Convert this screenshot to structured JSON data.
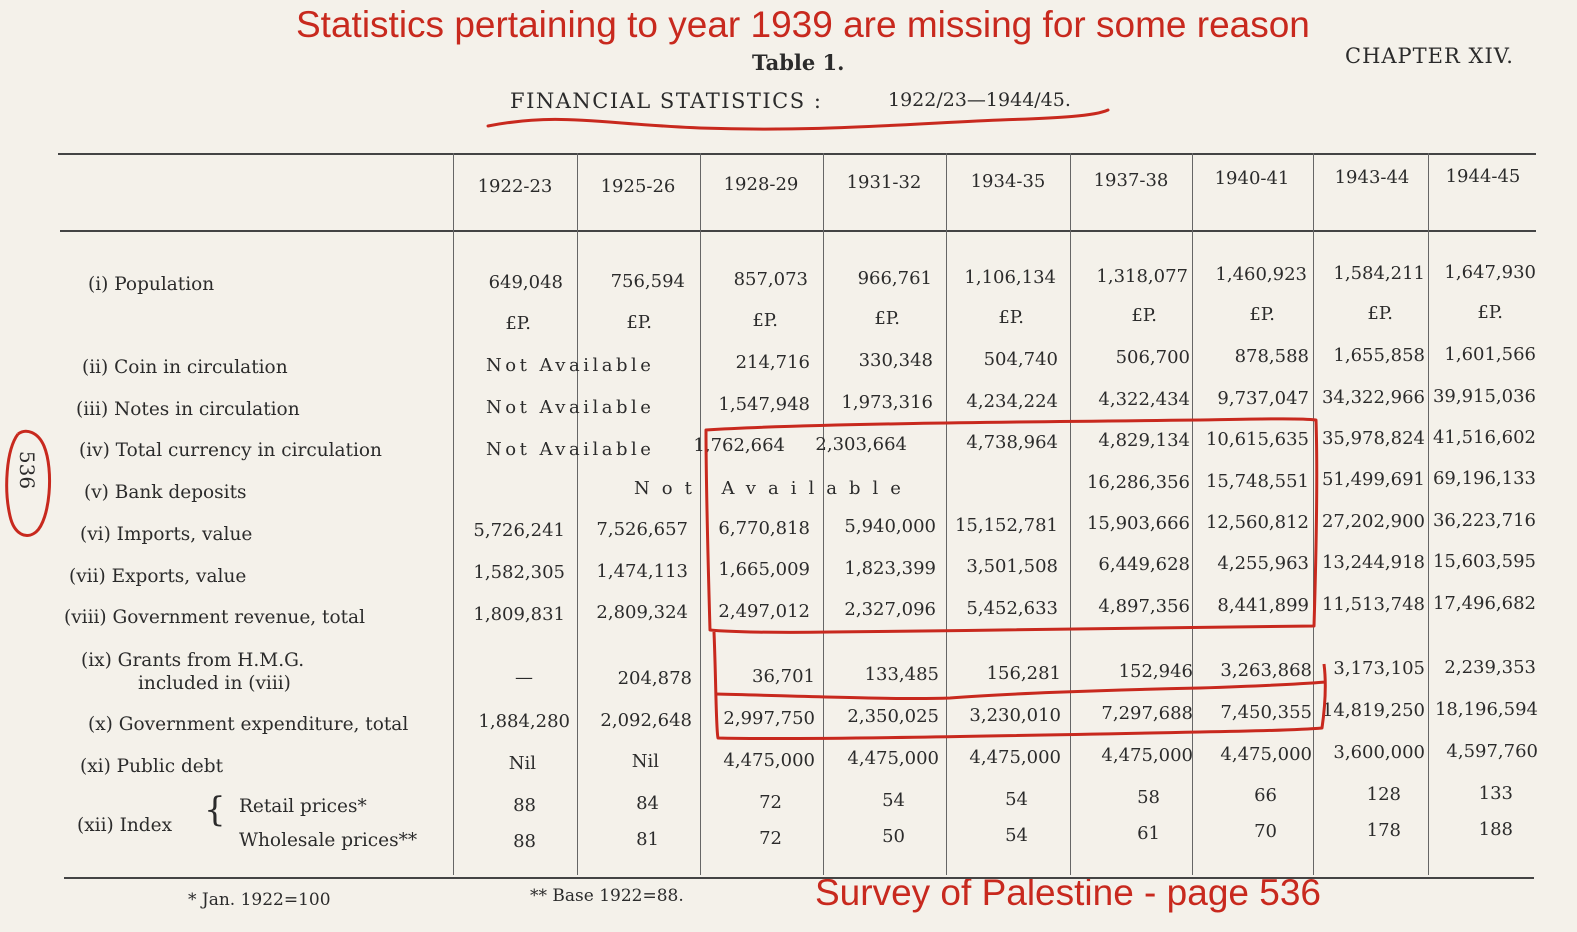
{
  "annotations": {
    "top": "Statistics pertaining to year 1939 are missing for some reason",
    "bottom": "Survey of Palestine - page 536"
  },
  "document": {
    "table_title": "Table 1.",
    "chapter": "CHAPTER XIV.",
    "heading": "FINANCIAL STATISTICS :",
    "heading_years": "1922/23—1944/45.",
    "page_number": "536",
    "years": [
      "1922-23",
      "1925-26",
      "1928-29",
      "1931-32",
      "1934-35",
      "1937-38",
      "1940-41",
      "1943-44",
      "1944-45"
    ],
    "unit": "£P.",
    "not_available": "Not Available",
    "rows": {
      "population": {
        "label": "(i) Population",
        "values": [
          "649,048",
          "756,594",
          "857,073",
          "966,761",
          "1,106,134",
          "1,318,077",
          "1,460,923",
          "1,584,211",
          "1,647,930"
        ]
      },
      "coin": {
        "label": "(ii) Coin in circulation",
        "values": [
          "214,716",
          "330,348",
          "504,740",
          "506,700",
          "878,588",
          "1,655,858",
          "1,601,566"
        ]
      },
      "notes": {
        "label": "(iii) Notes in circulation",
        "values": [
          "1,547,948",
          "1,973,316",
          "4,234,224",
          "4,322,434",
          "9,737,047",
          "34,322,966",
          "39,915,036"
        ]
      },
      "currency": {
        "label": "(iv) Total currency in circulation",
        "values": [
          "1,762,664",
          "2,303,664",
          "4,738,964",
          "4,829,134",
          "10,615,635",
          "35,978,824",
          "41,516,602"
        ]
      },
      "deposits": {
        "label": "(v) Bank deposits",
        "values": [
          "16,286,356",
          "15,748,551",
          "51,499,691",
          "69,196,133"
        ]
      },
      "imports": {
        "label": "(vi) Imports, value",
        "values": [
          "5,726,241",
          "7,526,657",
          "6,770,818",
          "5,940,000",
          "15,152,781",
          "15,903,666",
          "12,560,812",
          "27,202,900",
          "36,223,716"
        ]
      },
      "exports": {
        "label": "(vii) Exports, value",
        "values": [
          "1,582,305",
          "1,474,113",
          "1,665,009",
          "1,823,399",
          "3,501,508",
          "6,449,628",
          "4,255,963",
          "13,244,918",
          "15,603,595"
        ]
      },
      "revenue": {
        "label": "(viii) Government revenue, total",
        "values": [
          "1,809,831",
          "2,809,324",
          "2,497,012",
          "2,327,096",
          "5,452,633",
          "4,897,356",
          "8,441,899",
          "11,513,748",
          "17,496,682"
        ]
      },
      "grants": {
        "label_line1": "(ix) Grants from H.M.G.",
        "label_line2": "included in (viii)",
        "values": [
          "—",
          "204,878",
          "36,701",
          "133,485",
          "156,281",
          "152,946",
          "3,263,868",
          "3,173,105",
          "2,239,353"
        ]
      },
      "expenditure": {
        "label": "(x) Government expenditure, total",
        "values": [
          "1,884,280",
          "2,092,648",
          "2,997,750",
          "2,350,025",
          "3,230,010",
          "7,297,688",
          "7,450,355",
          "14,819,250",
          "18,196,594"
        ]
      },
      "debt": {
        "label": "(xi) Public debt",
        "values": [
          "Nil",
          "Nil",
          "4,475,000",
          "4,475,000",
          "4,475,000",
          "4,475,000",
          "4,475,000",
          "3,600,000",
          "4,597,760"
        ]
      },
      "index": {
        "label": "(xii) Index",
        "retail_label": "Retail prices*",
        "wholesale_label": "Wholesale prices**",
        "retail": [
          "88",
          "84",
          "72",
          "54",
          "54",
          "58",
          "66",
          "128",
          "133"
        ],
        "wholesale": [
          "88",
          "81",
          "72",
          "50",
          "54",
          "61",
          "70",
          "178",
          "188"
        ]
      }
    },
    "footnotes": {
      "one": "* Jan. 1922=100",
      "two": "** Base 1922=88."
    }
  }
}
